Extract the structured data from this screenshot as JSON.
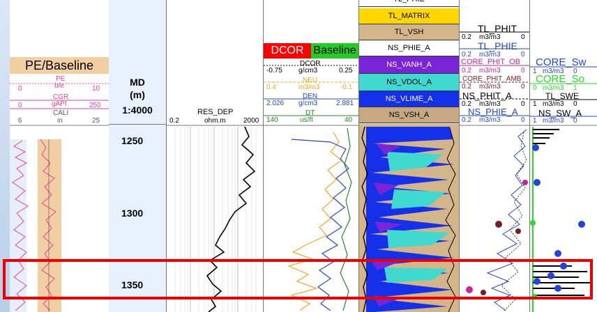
{
  "depth_track": {
    "title": "MD",
    "unit": "(m)",
    "scale": "1:4000",
    "ticks": [
      "1250",
      "1300",
      "1350"
    ],
    "tick_depths_m": [
      1250,
      1300,
      1350
    ]
  },
  "pe_track": {
    "title": "PE/Baseline",
    "curves": [
      {
        "name": "PE",
        "unit": "b/e",
        "min": "0",
        "max": "10",
        "color": "#e8409a"
      },
      {
        "name": "CGR",
        "unit": "gAPI",
        "min": "0",
        "max": "250",
        "color": "#e8409a"
      },
      {
        "name": "CALI",
        "unit": "in",
        "min": "6",
        "max": "25",
        "color": "#555555"
      }
    ]
  },
  "res_track": {
    "curve": {
      "name": "RES_DEP",
      "unit": "ohm.m",
      "min": "0.2",
      "max": "2000",
      "color": "#000000"
    }
  },
  "dcor_track": {
    "title_left": "DCOR",
    "title_right": "Baseline",
    "title_left_bg": "#ff0000",
    "title_right_bg": "#22cc22",
    "curves": [
      {
        "name": "DCOR",
        "unit": "g/cm3",
        "min": "-0.75",
        "max": "0.25",
        "color": "#000000"
      },
      {
        "name": "NEU",
        "unit": "m3/m3",
        "min": "0.4",
        "max": "-0.1",
        "color": "#f5a623"
      },
      {
        "name": "DEN",
        "unit": "g/cm3",
        "min": "2.026",
        "max": "2.881",
        "color": "#2244dd"
      },
      {
        "name": "DT",
        "unit": "us/ft",
        "min": "140",
        "max": "40",
        "color": "#228822"
      }
    ]
  },
  "lith_track": {
    "partial_top": "TL_PHIE",
    "rows": [
      {
        "label": "TL_MATRIX",
        "bg": "#ffd700",
        "fg": "#000000"
      },
      {
        "label": "TL_VSH",
        "bg": "#d4b58a",
        "fg": "#000000"
      },
      {
        "label": "NS_PHIE_A",
        "bg": "#ffffff",
        "fg": "#000000"
      },
      {
        "label": "NS_VANH_A",
        "bg": "#7a24d8",
        "fg": "#ffffff"
      },
      {
        "label": "NS_VDOL_A",
        "bg": "#3fd9d0",
        "fg": "#000000"
      },
      {
        "label": "NS_VLIME_A",
        "bg": "#1430e8",
        "fg": "#ffffff"
      },
      {
        "label": "NS_VSH_A",
        "bg": "#c8a880",
        "fg": "#000000"
      }
    ]
  },
  "phi_track": {
    "curves": [
      {
        "name": "TL_PHIT",
        "unit": "m3/m3",
        "min": "0.2",
        "max": "0",
        "color": "#000000"
      },
      {
        "name": "TL_PHIE",
        "unit": "m3/m3",
        "min": "0.2",
        "max": "0",
        "color": "#2244dd"
      },
      {
        "name": "CORE_PHIT_OB",
        "unit": "m3/m3",
        "min": "0.2",
        "max": "0",
        "color": "#cc2299"
      },
      {
        "name": "CORE_PHIT_AMB",
        "unit": "m3/m3",
        "min": "0.2",
        "max": "0",
        "color": "#7a1a2a"
      },
      {
        "name": "NS_PHIT_A",
        "unit": "m3/m3",
        "min": "0.2",
        "max": "0",
        "color": "#000000"
      },
      {
        "name": "NS_PHIE_A",
        "unit": "m3/m3",
        "min": "0.2",
        "max": "0",
        "color": "#2244dd"
      }
    ]
  },
  "sw_track": {
    "curves": [
      {
        "name": "CORE_Sw",
        "unit": "m3/m3",
        "min": "1",
        "max": "0",
        "color": "#2244dd"
      },
      {
        "name": "CORE_So",
        "unit": "m3/m3",
        "min": "0",
        "max": "1",
        "color": "#22dd22"
      },
      {
        "name": "TL_SWE",
        "unit": "m3/m3",
        "min": "1",
        "max": "0",
        "color": "#000000"
      },
      {
        "name": "NS_SW_A",
        "unit": "m3/m3",
        "min": "1",
        "max": "0",
        "color": "#2244dd"
      }
    ]
  },
  "highlight": {
    "color": "#ee0000",
    "from_depth_m": 1330,
    "to_depth_m": 1358
  }
}
